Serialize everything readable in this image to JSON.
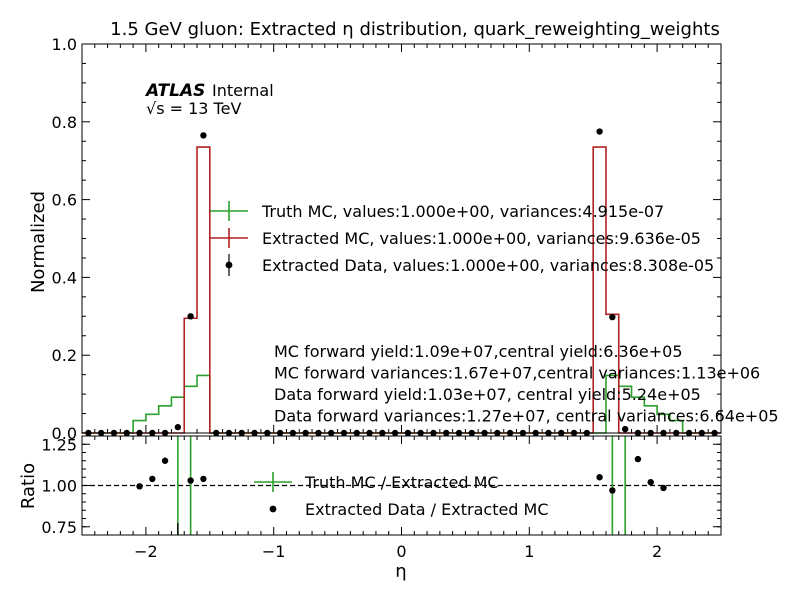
{
  "chart_data": [
    {
      "type": "step",
      "title": "1.5 GeV gluon: Extracted η distribution, quark_reweighting_weights",
      "ylabel": "Normalized",
      "xlim": [
        -2.5,
        2.5
      ],
      "ylim": [
        0,
        1.0
      ],
      "yticks": [
        "0.0",
        "0.2",
        "0.4",
        "0.6",
        "0.8",
        "1.0"
      ],
      "bin_edges": [
        -2.5,
        -2.4,
        -2.3,
        -2.2,
        -2.1,
        -2.0,
        -1.9,
        -1.8,
        -1.7,
        -1.6,
        -1.5,
        -1.4,
        -1.3,
        -1.2,
        -1.1,
        -1.0,
        -0.9,
        -0.8,
        -0.7,
        -0.6,
        -0.5,
        -0.4,
        -0.3,
        -0.2,
        -0.1,
        0.0,
        0.1,
        0.2,
        0.3,
        0.4,
        0.5,
        0.6,
        0.7,
        0.8,
        0.9,
        1.0,
        1.1,
        1.2,
        1.3,
        1.4,
        1.5,
        1.6,
        1.7,
        1.8,
        1.9,
        2.0,
        2.1,
        2.2,
        2.3,
        2.4,
        2.5
      ],
      "series": [
        {
          "name": "Truth MC, values:1.000e+00, variances:4.915e-07",
          "color": "#2ca02c",
          "values": [
            0,
            0,
            0,
            0,
            0.032,
            0.048,
            0.07,
            0.092,
            0.12,
            0.148,
            0,
            0,
            0,
            0,
            0,
            0,
            0,
            0,
            0,
            0,
            0,
            0,
            0,
            0,
            0,
            0,
            0,
            0,
            0,
            0,
            0,
            0,
            0,
            0,
            0,
            0,
            0,
            0,
            0,
            0,
            0,
            0.148,
            0.12,
            0.092,
            0.07,
            0.048,
            0.032,
            0,
            0,
            0
          ]
        },
        {
          "name": "Extracted MC, values:1.000e+00, variances:9.636e-05",
          "color": "#b22222",
          "values": [
            0,
            0,
            0,
            0,
            0,
            0,
            0,
            0,
            0.295,
            0.735,
            0,
            0,
            0,
            0,
            0,
            0,
            0,
            0,
            0,
            0,
            0,
            0,
            0,
            0,
            0,
            0,
            0,
            0,
            0,
            0,
            0,
            0,
            0,
            0,
            0,
            0,
            0,
            0,
            0,
            0,
            0.735,
            0.305,
            0,
            0,
            0,
            0,
            0,
            0,
            0,
            0
          ]
        },
        {
          "name": "Extracted Data, values:1.000e+00, variances:8.308e-05",
          "color": "#000000",
          "values": [
            0,
            0,
            0,
            0,
            0,
            0,
            0,
            0.015,
            0.3,
            0.765,
            0,
            0,
            0,
            0,
            0,
            0,
            0,
            0,
            0,
            0,
            0,
            0,
            0,
            0,
            0,
            0,
            0,
            0,
            0,
            0,
            0,
            0,
            0,
            0,
            0,
            0,
            0,
            0,
            0,
            0,
            0.775,
            0.298,
            0.01,
            0,
            0,
            0,
            0,
            0,
            0,
            0
          ]
        }
      ],
      "atlas_label": "ATLAS",
      "atlas_sub": "Internal",
      "energy_label": "√s = 13 TeV",
      "annotations": [
        "MC forward yield:1.09e+07,central yield:6.36e+05",
        "MC forward variances:1.67e+07,central variances:1.13e+06",
        "Data forward yield:1.03e+07, central yield:5.24e+05",
        "Data forward variances:1.27e+07, central variances:6.64e+05"
      ]
    },
    {
      "type": "scatter",
      "xlabel": "η",
      "ylabel": "Ratio",
      "xlim": [
        -2.5,
        2.5
      ],
      "ylim": [
        0.7,
        1.3
      ],
      "xticks": [
        "−2",
        "−1",
        "0",
        "1",
        "2"
      ],
      "yticks": [
        "0.75",
        "1.00",
        "1.25"
      ],
      "reference_line": 1.0,
      "series": [
        {
          "name": "Truth MC / Extracted MC",
          "color": "#2ca02c",
          "vertical_lines_x": [
            -1.75,
            -1.65,
            1.65,
            1.75
          ]
        },
        {
          "name": "Extracted Data / Extracted MC",
          "color": "#000000",
          "x": [
            -2.05,
            -1.95,
            -1.85,
            -1.65,
            -1.55,
            1.55,
            1.65,
            1.85,
            1.95,
            2.05
          ],
          "y": [
            0.995,
            1.04,
            1.15,
            1.03,
            1.04,
            1.05,
            0.97,
            1.16,
            1.02,
            0.985
          ]
        }
      ]
    }
  ]
}
